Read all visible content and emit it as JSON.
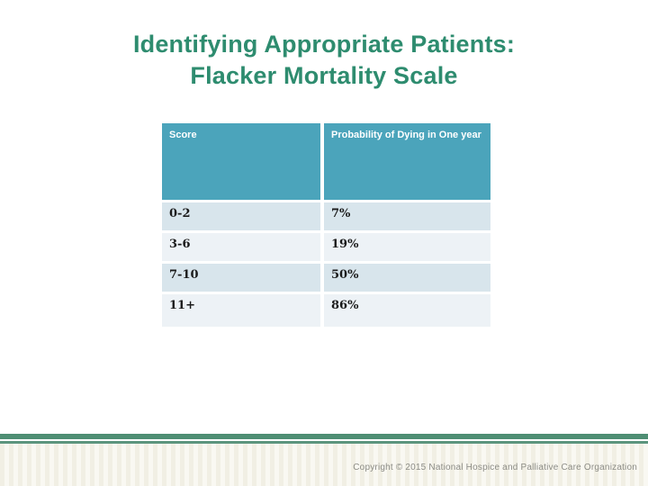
{
  "slide": {
    "title": {
      "line1": "Identifying Appropriate Patients:",
      "line2": "Flacker Mortality Scale"
    }
  },
  "table": {
    "headers": [
      "Score",
      "Probability of Dying in One year"
    ],
    "rows": [
      {
        "score": "0-2",
        "probability": "7%"
      },
      {
        "score": "3-6",
        "probability": "19%"
      },
      {
        "score": "7-10",
        "probability": "50%"
      },
      {
        "score": "11+",
        "probability": "86%"
      }
    ]
  },
  "footer": {
    "copyright": "Copyright © 2015 National Hospice and Palliative Care Organization"
  },
  "colors": {
    "title_green": "#2E8C6F",
    "table_header_teal": "#4BA4BB",
    "row_light_blue": "#D8E5EC",
    "row_lighter_blue": "#EDF2F6",
    "footer_band_green": "#4E8E73",
    "footer_stripe_cream": "#F1EFE4",
    "copyright_gray": "#8C8C86"
  },
  "chart_data": {
    "type": "table",
    "columns": [
      "Score",
      "Probability of Dying in One year"
    ],
    "rows": [
      [
        "0-2",
        "7%"
      ],
      [
        "3-6",
        "19%"
      ],
      [
        "7-10",
        "50%"
      ],
      [
        "11+",
        "86%"
      ]
    ]
  }
}
